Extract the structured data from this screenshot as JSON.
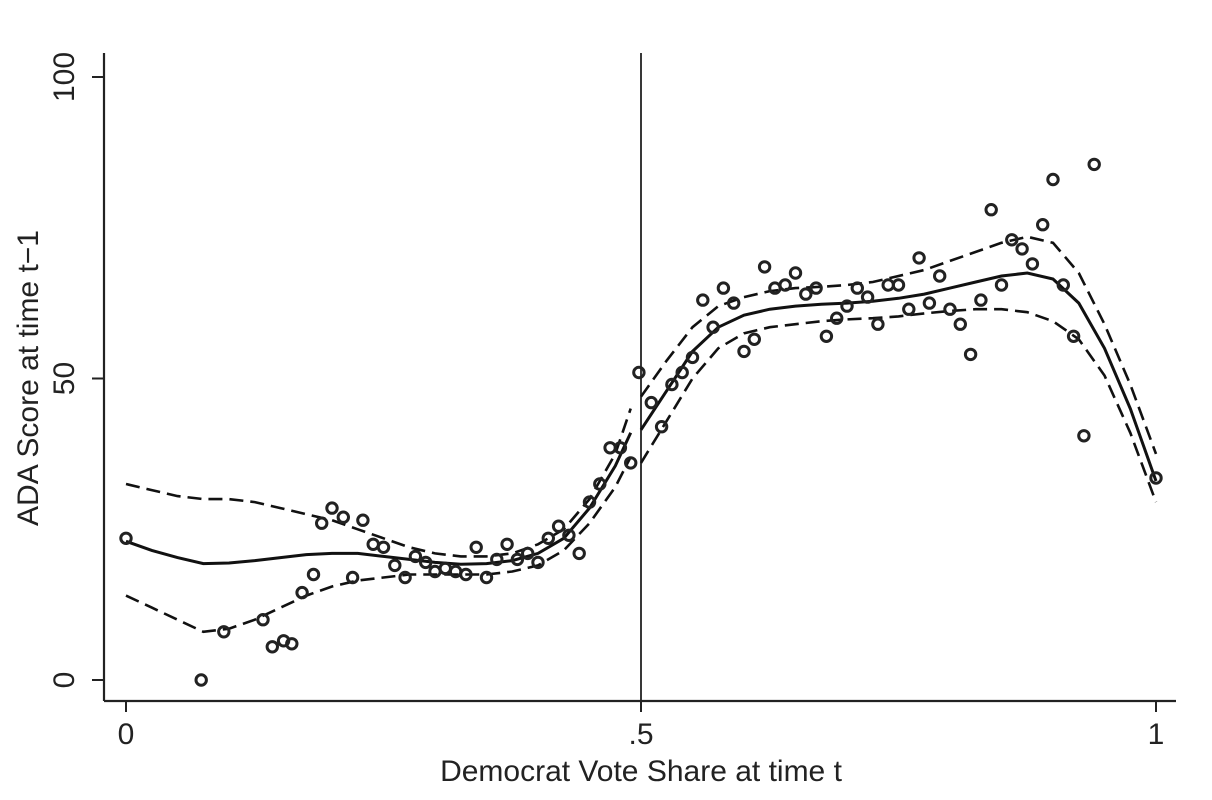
{
  "chart_data": {
    "type": "scatter",
    "title": "",
    "xlabel": "Democrat Vote Share at time t",
    "ylabel": "ADA Score at time t−1",
    "xlim": [
      0,
      1
    ],
    "ylim": [
      0,
      100
    ],
    "x_ticks": [
      {
        "value": 0,
        "label": "0"
      },
      {
        "value": 0.5,
        "label": ".5"
      },
      {
        "value": 1,
        "label": "1"
      }
    ],
    "y_ticks": [
      {
        "value": 0,
        "label": "0"
      },
      {
        "value": 50,
        "label": "50"
      },
      {
        "value": 100,
        "label": "100"
      }
    ],
    "grid": false,
    "cutoff_x": 0.5,
    "points": [
      [
        0.0,
        23.5
      ],
      [
        0.073,
        0.0
      ],
      [
        0.095,
        8.0
      ],
      [
        0.133,
        10.0
      ],
      [
        0.142,
        5.5
      ],
      [
        0.153,
        6.5
      ],
      [
        0.161,
        6.0
      ],
      [
        0.171,
        14.5
      ],
      [
        0.182,
        17.5
      ],
      [
        0.19,
        26.0
      ],
      [
        0.2,
        28.5
      ],
      [
        0.211,
        27.0
      ],
      [
        0.22,
        17.0
      ],
      [
        0.23,
        26.5
      ],
      [
        0.24,
        22.5
      ],
      [
        0.25,
        22.0
      ],
      [
        0.261,
        19.0
      ],
      [
        0.271,
        17.0
      ],
      [
        0.281,
        20.5
      ],
      [
        0.291,
        19.5
      ],
      [
        0.3,
        18.0
      ],
      [
        0.31,
        18.5
      ],
      [
        0.32,
        18.0
      ],
      [
        0.33,
        17.5
      ],
      [
        0.34,
        22.0
      ],
      [
        0.35,
        17.0
      ],
      [
        0.36,
        20.0
      ],
      [
        0.37,
        22.5
      ],
      [
        0.38,
        20.0
      ],
      [
        0.39,
        21.0
      ],
      [
        0.4,
        19.5
      ],
      [
        0.41,
        23.5
      ],
      [
        0.42,
        25.5
      ],
      [
        0.43,
        24.0
      ],
      [
        0.44,
        21.0
      ],
      [
        0.45,
        29.5
      ],
      [
        0.46,
        32.5
      ],
      [
        0.47,
        38.5
      ],
      [
        0.48,
        38.5
      ],
      [
        0.49,
        36.0
      ],
      [
        0.498,
        51.0
      ],
      [
        0.51,
        46.0
      ],
      [
        0.52,
        42.0
      ],
      [
        0.53,
        49.0
      ],
      [
        0.54,
        51.0
      ],
      [
        0.55,
        53.5
      ],
      [
        0.56,
        63.0
      ],
      [
        0.57,
        58.5
      ],
      [
        0.58,
        65.0
      ],
      [
        0.59,
        62.5
      ],
      [
        0.6,
        54.5
      ],
      [
        0.61,
        56.5
      ],
      [
        0.62,
        68.5
      ],
      [
        0.63,
        65.0
      ],
      [
        0.64,
        65.5
      ],
      [
        0.65,
        67.5
      ],
      [
        0.66,
        64.0
      ],
      [
        0.67,
        65.0
      ],
      [
        0.68,
        57.0
      ],
      [
        0.69,
        60.0
      ],
      [
        0.7,
        62.0
      ],
      [
        0.71,
        65.0
      ],
      [
        0.72,
        63.5
      ],
      [
        0.73,
        59.0
      ],
      [
        0.74,
        65.5
      ],
      [
        0.75,
        65.5
      ],
      [
        0.76,
        61.5
      ],
      [
        0.77,
        70.0
      ],
      [
        0.78,
        62.5
      ],
      [
        0.79,
        67.0
      ],
      [
        0.8,
        61.5
      ],
      [
        0.81,
        59.0
      ],
      [
        0.82,
        54.0
      ],
      [
        0.83,
        63.0
      ],
      [
        0.84,
        78.0
      ],
      [
        0.85,
        65.5
      ],
      [
        0.86,
        73.0
      ],
      [
        0.87,
        71.5
      ],
      [
        0.88,
        69.0
      ],
      [
        0.89,
        75.5
      ],
      [
        0.9,
        83.0
      ],
      [
        0.91,
        65.5
      ],
      [
        0.92,
        57.0
      ],
      [
        0.93,
        40.5
      ],
      [
        0.94,
        85.5
      ],
      [
        1.0,
        33.5
      ]
    ],
    "series": [
      {
        "style": "solid",
        "x": [
          0,
          0.025,
          0.05,
          0.075,
          0.1,
          0.125,
          0.15,
          0.175,
          0.2,
          0.225,
          0.25,
          0.275,
          0.3,
          0.325,
          0.35,
          0.375,
          0.4,
          0.425,
          0.45,
          0.475,
          0.49
        ],
        "y": [
          23,
          21.5,
          20.3,
          19.3,
          19.4,
          19.8,
          20.3,
          20.8,
          21.0,
          21.0,
          20.5,
          20.0,
          19.5,
          19.2,
          19.3,
          19.8,
          21.0,
          23.5,
          28.5,
          35.5,
          41.0
        ]
      },
      {
        "style": "dashed",
        "x": [
          0,
          0.025,
          0.05,
          0.075,
          0.1,
          0.125,
          0.15,
          0.175,
          0.2,
          0.225,
          0.25,
          0.275,
          0.3,
          0.325,
          0.35,
          0.375,
          0.4,
          0.425,
          0.45,
          0.475,
          0.49
        ],
        "y": [
          32.5,
          31.5,
          30.5,
          30.0,
          30.0,
          29.5,
          28.5,
          27.5,
          26.5,
          25.0,
          23.5,
          22.0,
          21.0,
          20.5,
          20.5,
          21.0,
          22.5,
          25.0,
          30.0,
          37.5,
          45.0
        ]
      },
      {
        "style": "dashed",
        "x": [
          0,
          0.025,
          0.05,
          0.075,
          0.1,
          0.125,
          0.15,
          0.175,
          0.2,
          0.225,
          0.25,
          0.275,
          0.3,
          0.325,
          0.35,
          0.375,
          0.4,
          0.425,
          0.45,
          0.475,
          0.49
        ],
        "y": [
          14.0,
          12.0,
          10.0,
          8.0,
          8.5,
          10.0,
          12.0,
          14.0,
          15.5,
          16.5,
          17.0,
          17.5,
          17.5,
          17.5,
          17.5,
          18.0,
          19.0,
          21.5,
          26.0,
          32.0,
          37.0
        ]
      },
      {
        "style": "solid",
        "x": [
          0.5,
          0.525,
          0.55,
          0.575,
          0.6,
          0.625,
          0.65,
          0.675,
          0.7,
          0.725,
          0.75,
          0.775,
          0.8,
          0.825,
          0.85,
          0.875,
          0.9,
          0.925,
          0.95,
          0.975,
          1.0
        ],
        "y": [
          41.5,
          48.0,
          54.5,
          58.5,
          60.5,
          61.5,
          62.0,
          62.3,
          62.5,
          62.8,
          63.3,
          64.0,
          65.0,
          66.0,
          67.0,
          67.5,
          66.5,
          62.5,
          55.0,
          45.0,
          33.0
        ]
      },
      {
        "style": "dashed",
        "x": [
          0.5,
          0.525,
          0.55,
          0.575,
          0.6,
          0.625,
          0.65,
          0.675,
          0.7,
          0.725,
          0.75,
          0.775,
          0.8,
          0.825,
          0.85,
          0.875,
          0.9,
          0.925,
          0.95,
          0.975,
          1.0
        ],
        "y": [
          47.0,
          53.0,
          58.5,
          62.0,
          63.5,
          64.5,
          65.0,
          65.2,
          65.5,
          66.0,
          67.0,
          68.0,
          69.5,
          71.0,
          72.5,
          73.5,
          72.5,
          67.5,
          59.0,
          49.0,
          37.5
        ]
      },
      {
        "style": "dashed",
        "x": [
          0.5,
          0.525,
          0.55,
          0.575,
          0.6,
          0.625,
          0.65,
          0.675,
          0.7,
          0.725,
          0.75,
          0.775,
          0.8,
          0.825,
          0.85,
          0.875,
          0.9,
          0.925,
          0.95,
          0.975,
          1.0
        ],
        "y": [
          36.0,
          43.0,
          50.0,
          55.0,
          57.5,
          58.5,
          59.0,
          59.5,
          59.8,
          60.0,
          60.3,
          60.8,
          61.2,
          61.5,
          61.5,
          61.0,
          59.5,
          56.5,
          50.5,
          41.0,
          29.5
        ]
      }
    ]
  }
}
